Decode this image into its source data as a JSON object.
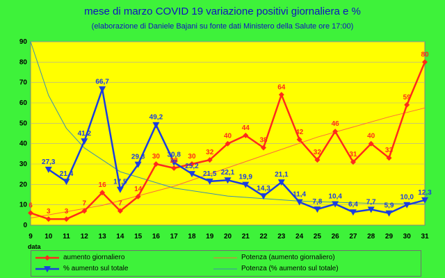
{
  "chart_data": {
    "type": "line",
    "title": "mese di marzo COVID 19 variazione positivi giornaliera e %",
    "subtitle": "(elaborazione di Daniele Bajani su fonte dati Ministero della Salute ore 17:00)",
    "xlabel": "data",
    "ylabel": "",
    "x": [
      9,
      10,
      11,
      12,
      13,
      14,
      15,
      16,
      17,
      18,
      19,
      20,
      21,
      22,
      23,
      24,
      25,
      26,
      27,
      28,
      29,
      30,
      31
    ],
    "ylim": [
      0,
      90
    ],
    "yticks": [
      0,
      10,
      20,
      30,
      40,
      50,
      60,
      70,
      80,
      90
    ],
    "grid": true,
    "legend_position": "bottom",
    "series": [
      {
        "name": "aumento giornaliero",
        "color": "#ff2a1a",
        "marker": "diamond",
        "values": [
          6,
          3,
          3,
          7,
          16,
          7,
          14,
          30,
          28,
          30,
          32,
          40,
          44,
          38,
          64,
          42,
          32,
          46,
          31,
          40,
          33,
          59,
          80
        ],
        "labels": [
          "6",
          "3",
          "3",
          "7",
          "16",
          "7",
          "14",
          "30",
          "28",
          "30",
          "32",
          "40",
          "44",
          "38",
          "64",
          "42",
          "32",
          "46",
          "31",
          "40",
          "33",
          "59",
          "80"
        ]
      },
      {
        "name": "% aumento sul totale",
        "color": "#1a3de0",
        "marker": "triangle-down",
        "values": [
          null,
          27.3,
          21.4,
          41.2,
          66.7,
          17.5,
          29.8,
          49.2,
          30.8,
          25.2,
          21.5,
          22.1,
          19.9,
          14.3,
          21.1,
          11.4,
          7.8,
          10.4,
          6.4,
          7.7,
          5.9,
          10.0,
          12.3
        ],
        "labels": [
          "",
          "27,3",
          "21,4",
          "41,2",
          "66,7",
          "17,5",
          "29,8",
          "49,2",
          "30,8",
          "25,2",
          "21,5",
          "22,1",
          "19,9",
          "14,3",
          "21,1",
          "11,4",
          "7,8",
          "10,4",
          "6,4",
          "7,7",
          "5,9",
          "10,0",
          "12,3"
        ]
      }
    ],
    "trendlines": [
      {
        "name": "Potenza (aumento giornaliero)",
        "type": "power",
        "color": "#ff6a3a",
        "x": [
          9,
          13,
          17,
          21,
          25,
          29,
          31
        ],
        "values": [
          3.5,
          9.7,
          19.1,
          31.2,
          43.2,
          53.1,
          57.5
        ]
      },
      {
        "name": "Potenza (% aumento sul totale)",
        "type": "power",
        "color": "#3a8fb0",
        "x": [
          9,
          10,
          11,
          12,
          14,
          17,
          20,
          24,
          28,
          31
        ],
        "values": [
          90,
          63.7,
          47.5,
          37.9,
          26.2,
          18.2,
          14.3,
          11.8,
          10.7,
          10.4
        ]
      }
    ]
  }
}
